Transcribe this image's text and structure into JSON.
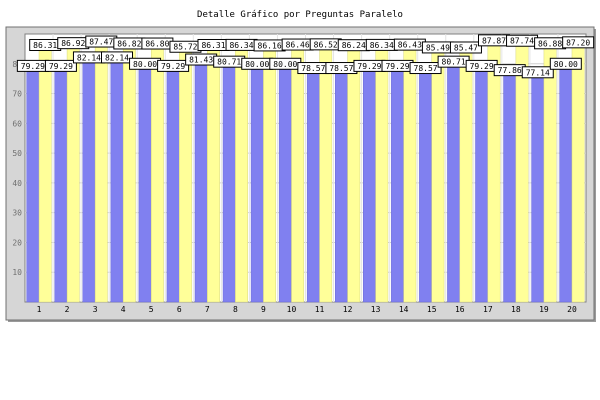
{
  "chart_data": {
    "type": "bar",
    "title": "Detalle Gráfico por Preguntas Paralelo",
    "xlabel": "",
    "ylabel": "",
    "categories": [
      "1",
      "2",
      "3",
      "4",
      "5",
      "6",
      "7",
      "8",
      "9",
      "10",
      "11",
      "12",
      "13",
      "14",
      "15",
      "16",
      "17",
      "18",
      "19",
      "20"
    ],
    "series": [
      {
        "color": "#8080f0",
        "values": [
          79.29,
          79.29,
          82.14,
          82.14,
          80.0,
          79.29,
          81.43,
          80.71,
          80.0,
          80.0,
          78.57,
          78.57,
          79.29,
          79.29,
          78.57,
          80.71,
          79.29,
          77.86,
          77.14,
          80.0
        ]
      },
      {
        "color": "#ffff99",
        "values": [
          86.31,
          86.92,
          87.47,
          86.82,
          86.8,
          85.72,
          86.31,
          86.34,
          86.16,
          86.46,
          86.52,
          86.24,
          86.34,
          86.43,
          85.49,
          85.47,
          87.87,
          87.74,
          86.88,
          87.2
        ]
      }
    ],
    "yticks": [
      10,
      20,
      30,
      40,
      50,
      60,
      70,
      80
    ],
    "ylim": [
      0,
      90
    ],
    "grid": true,
    "legend": "none"
  }
}
